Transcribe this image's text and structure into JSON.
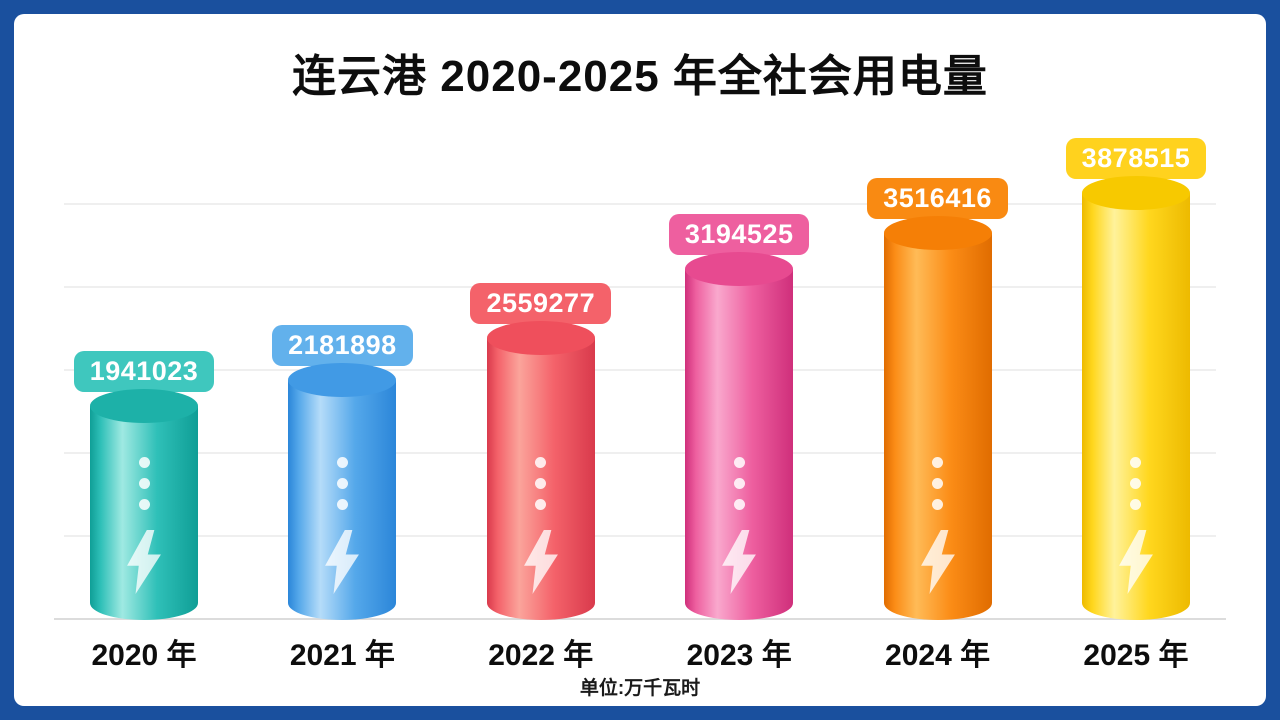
{
  "frame": {
    "color": "#1a509e"
  },
  "header": {
    "title": "连云港 2020-2025 年全社会用电量"
  },
  "footer": {
    "unit_label": "单位:万千瓦时"
  },
  "chart_data": {
    "type": "bar",
    "title": "连云港 2020-2025 年全社会用电量",
    "xlabel": "",
    "unit": "万千瓦时",
    "categories": [
      "2020 年",
      "2021 年",
      "2022 年",
      "2023 年",
      "2024 年",
      "2025 年"
    ],
    "values": [
      1941023,
      2181898,
      2559277,
      3194525,
      3516416,
      3878515
    ],
    "ylim": [
      0,
      4000000
    ],
    "grid": true,
    "legend": false,
    "bar_shape": "3d-cylinder-battery",
    "icons": [
      "lightning-bolt-icon",
      "dots-icon"
    ],
    "colors": [
      {
        "label": "2020",
        "main": "#2fc0b8",
        "light": "#9fe9e2",
        "dark": "#0f9e96",
        "top": "#1db1a8",
        "badge": "#3fc7be"
      },
      {
        "label": "2021",
        "main": "#55a8ea",
        "light": "#b5dcf9",
        "dark": "#2b86d9",
        "top": "#419ae5",
        "badge": "#62b1ec"
      },
      {
        "label": "2022",
        "main": "#f4626a",
        "light": "#fba49b",
        "dark": "#d93a4c",
        "top": "#ef4f5c",
        "badge": "#f4626a"
      },
      {
        "label": "2023",
        "main": "#ee5f9f",
        "light": "#f9a8cd",
        "dark": "#cf2f7b",
        "top": "#e74a90",
        "badge": "#ee5f9f"
      },
      {
        "label": "2024",
        "main": "#fb8c16",
        "light": "#ffbb57",
        "dark": "#e06c00",
        "top": "#f57f06",
        "badge": "#f98a12"
      },
      {
        "label": "2025",
        "main": "#ffd71e",
        "light": "#fff29b",
        "dark": "#edba00",
        "top": "#f7c900",
        "badge": "#ffd21e"
      }
    ]
  }
}
